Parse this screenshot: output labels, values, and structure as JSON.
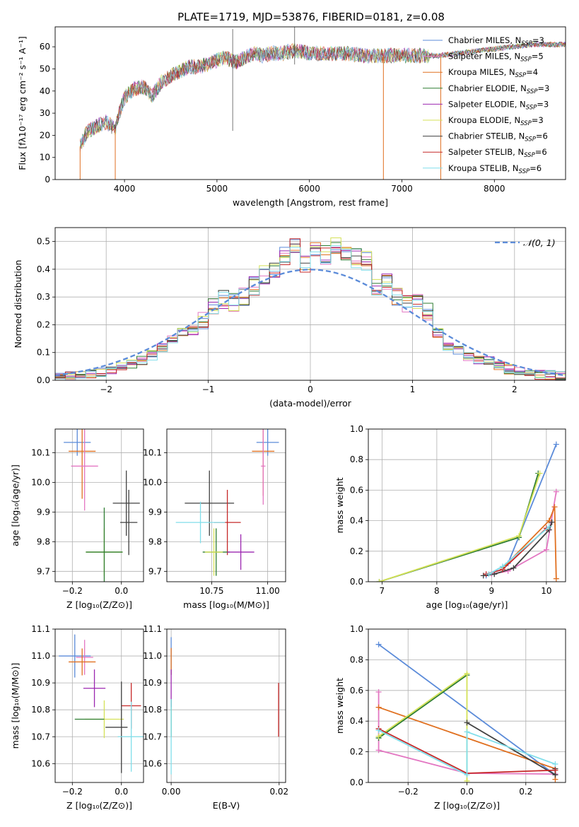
{
  "title": "PLATE=1719, MJD=53876, FIBERID=0181, z=0.08",
  "colors": {
    "chabrier_miles": "#5b8bd9",
    "salpeter_miles": "#e377c2",
    "kroupa_miles": "#e07020",
    "chabrier_elodie": "#2e7d32",
    "salpeter_elodie": "#9c27b0",
    "kroupa_elodie": "#d4e157",
    "chabrier_stelib": "#404040",
    "salpeter_stelib": "#c62828",
    "kroupa_stelib": "#80deea",
    "normal": "#5b8bd9"
  },
  "legend": [
    {
      "label": "Chabrier MILES, N",
      "sub": "SSP",
      "tail": "=3",
      "color": "#5b8bd9"
    },
    {
      "label": "Salpeter MILES, N",
      "sub": "SSP",
      "tail": "=5",
      "color": "#e377c2"
    },
    {
      "label": "Kroupa MILES, N",
      "sub": "SSP",
      "tail": "=4",
      "color": "#e07020"
    },
    {
      "label": "Chabrier ELODIE, N",
      "sub": "SSP",
      "tail": "=3",
      "color": "#2e7d32"
    },
    {
      "label": "Salpeter ELODIE, N",
      "sub": "SSP",
      "tail": "=3",
      "color": "#9c27b0"
    },
    {
      "label": "Kroupa ELODIE, N",
      "sub": "SSP",
      "tail": "=3",
      "color": "#d4e157"
    },
    {
      "label": "Chabrier STELIB, N",
      "sub": "SSP",
      "tail": "=6",
      "color": "#404040"
    },
    {
      "label": "Salpeter STELIB, N",
      "sub": "SSP",
      "tail": "=6",
      "color": "#c62828"
    },
    {
      "label": "Kroupa STELIB, N",
      "sub": "SSP",
      "tail": "=6",
      "color": "#80deea"
    }
  ],
  "chart_data": [
    {
      "type": "line",
      "id": "spectrum",
      "xlabel": "wavelength [Angstrom, rest frame]",
      "ylabel": "Flux [fλ10⁻¹⁷ erg cm⁻² s⁻¹ A⁻¹]",
      "xlim": [
        3250,
        8770
      ],
      "ylim": [
        0,
        69
      ],
      "xticks": [
        4000,
        5000,
        6000,
        7000,
        8000
      ],
      "yticks": [
        0,
        10,
        20,
        30,
        40,
        50,
        60
      ],
      "grid": false,
      "legend_position": "top-right",
      "envelope": {
        "x": [
          3520,
          3600,
          3700,
          3800,
          3900,
          3950,
          4000,
          4100,
          4200,
          4300,
          4400,
          4500,
          4600,
          4700,
          4800,
          4900,
          5000,
          5100,
          5200,
          5300,
          5400,
          5500,
          5600,
          5700,
          5800,
          5900,
          6000,
          6200,
          6400,
          6600,
          6800,
          7000,
          7200,
          7400,
          7600,
          7800,
          8000,
          8200,
          8400,
          8600,
          8770
        ],
        "y": [
          15,
          22,
          24,
          26,
          23,
          31,
          37,
          41,
          42,
          38,
          44,
          47,
          49,
          51,
          51,
          52,
          54,
          55,
          53,
          55,
          57,
          56,
          57,
          57,
          58,
          58,
          57,
          57,
          57,
          56,
          56,
          56,
          56,
          56,
          57,
          58,
          59,
          60,
          61,
          61,
          61
        ]
      },
      "noise_amplitude": 3.5
    },
    {
      "type": "bar",
      "id": "residual_hist",
      "xlabel": "(data-model)/error",
      "ylabel": "Normed distribution",
      "xlim": [
        -2.5,
        2.5
      ],
      "ylim": [
        0,
        0.55
      ],
      "xticks": [
        -2,
        -1,
        0,
        1,
        2
      ],
      "xtick_labels": [
        "−2",
        "−1",
        "0",
        "1",
        "2"
      ],
      "yticks": [
        0.0,
        0.1,
        0.2,
        0.3,
        0.4,
        0.5
      ],
      "grid": true,
      "bin_width": 0.1,
      "legend": "𝒩(0, 1)",
      "legend_position": "top-right",
      "bins": [
        -2.5,
        -2.4,
        -2.3,
        -2.2,
        -2.1,
        -2.0,
        -1.9,
        -1.8,
        -1.7,
        -1.6,
        -1.5,
        -1.4,
        -1.3,
        -1.2,
        -1.1,
        -1.0,
        -0.9,
        -0.8,
        -0.7,
        -0.6,
        -0.5,
        -0.4,
        -0.3,
        -0.2,
        -0.1,
        0.0,
        0.1,
        0.2,
        0.3,
        0.4,
        0.5,
        0.6,
        0.7,
        0.8,
        0.9,
        1.0,
        1.1,
        1.2,
        1.3,
        1.4,
        1.5,
        1.6,
        1.7,
        1.8,
        1.9,
        2.0,
        2.1,
        2.2,
        2.3,
        2.4
      ],
      "base_values": [
        0.01,
        0.015,
        0.02,
        0.025,
        0.03,
        0.04,
        0.05,
        0.06,
        0.07,
        0.09,
        0.12,
        0.15,
        0.17,
        0.18,
        0.22,
        0.27,
        0.29,
        0.28,
        0.3,
        0.34,
        0.38,
        0.4,
        0.45,
        0.48,
        0.42,
        0.47,
        0.45,
        0.48,
        0.45,
        0.44,
        0.43,
        0.33,
        0.36,
        0.3,
        0.27,
        0.29,
        0.25,
        0.17,
        0.12,
        0.11,
        0.08,
        0.07,
        0.07,
        0.05,
        0.04,
        0.03,
        0.02,
        0.02,
        0.02,
        0.02
      ],
      "normal_curve": {
        "mean": 0,
        "std": 1
      }
    },
    {
      "type": "scatter",
      "id": "age_vs_Z",
      "xlabel": "Z [log₁₀(Z/Z⊙)]",
      "ylabel": "age  [log₁₀(age/yr)]",
      "xlim": [
        -0.27,
        0.09
      ],
      "ylim": [
        9.665,
        10.18
      ],
      "xticks": [
        -0.2,
        0.0
      ],
      "xtick_labels": [
        "−0.2",
        "0.0"
      ],
      "yticks": [
        9.7,
        9.8,
        9.9,
        10.0,
        10.1
      ],
      "grid": true,
      "points": [
        {
          "x": -0.18,
          "y": 10.135,
          "xerr": 0.055,
          "yerr": 0.045,
          "color": "#5b8bd9"
        },
        {
          "x": -0.16,
          "y": 10.105,
          "xerr": 0.055,
          "yerr": 0.16,
          "color": "#e07020"
        },
        {
          "x": -0.15,
          "y": 10.055,
          "xerr": 0.055,
          "yerr": 0.15,
          "color": "#e377c2"
        },
        {
          "x": 0.02,
          "y": 9.93,
          "xerr": 0.055,
          "yerr": 0.11,
          "color": "#404040"
        },
        {
          "x": 0.03,
          "y": 9.865,
          "xerr": 0.035,
          "yerr": 0.11,
          "color": "#404040"
        },
        {
          "x": -0.07,
          "y": 9.765,
          "xerr": 0.075,
          "yerr": 0.08,
          "color": "#d4e157"
        },
        {
          "x": -0.07,
          "y": 9.765,
          "xerr": 0.075,
          "yerr": 0.15,
          "color": "#2e7d32"
        }
      ]
    },
    {
      "type": "scatter",
      "id": "age_vs_mass",
      "xlabel": "mass [log₁₀(M/M⊙)]",
      "ylabel": "",
      "xlim": [
        10.55,
        11.08
      ],
      "ylim": [
        9.665,
        10.18
      ],
      "xticks": [
        10.75,
        11.0
      ],
      "xtick_labels": [
        "10.75",
        "11.00"
      ],
      "yticks": [
        9.7,
        9.8,
        9.9,
        10.0,
        10.1
      ],
      "grid": true,
      "points": [
        {
          "x": 11.0,
          "y": 10.135,
          "xerr": 0.05,
          "yerr": 0.045,
          "color": "#5b8bd9"
        },
        {
          "x": 10.98,
          "y": 10.105,
          "xerr": 0.05,
          "yerr": 0.15,
          "color": "#e07020"
        },
        {
          "x": 10.98,
          "y": 10.055,
          "xerr": 0.01,
          "yerr": 0.13,
          "color": "#e377c2"
        },
        {
          "x": 10.74,
          "y": 9.93,
          "xerr": 0.11,
          "yerr": 0.11,
          "color": "#404040"
        },
        {
          "x": 10.82,
          "y": 9.865,
          "xerr": 0.06,
          "yerr": 0.11,
          "color": "#c62828"
        },
        {
          "x": 10.7,
          "y": 9.865,
          "xerr": 0.11,
          "yerr": 0.07,
          "color": "#80deea"
        },
        {
          "x": 10.77,
          "y": 9.765,
          "xerr": 0.06,
          "yerr": 0.08,
          "color": "#2e7d32"
        },
        {
          "x": 10.88,
          "y": 9.765,
          "xerr": 0.06,
          "yerr": 0.06,
          "color": "#9c27b0"
        },
        {
          "x": 10.76,
          "y": 9.765,
          "xerr": 0.04,
          "yerr": 0.08,
          "color": "#d4e157"
        }
      ]
    },
    {
      "type": "line",
      "id": "massweight_vs_age",
      "xlabel": "age  [log₁₀(age/yr)]",
      "ylabel": "mass weight",
      "xlim": [
        6.75,
        10.35
      ],
      "ylim": [
        0,
        1.0
      ],
      "xticks": [
        7,
        8,
        9,
        10
      ],
      "yticks": [
        0.0,
        0.2,
        0.4,
        0.6,
        0.8,
        1.0
      ],
      "grid": true,
      "series": [
        {
          "color": "#5b8bd9",
          "x": [
            8.9,
            9.3,
            10.18
          ],
          "y": [
            0.04,
            0.12,
            0.9
          ]
        },
        {
          "color": "#e377c2",
          "x": [
            9.0,
            9.3,
            10.0,
            10.18
          ],
          "y": [
            0.05,
            0.07,
            0.21,
            0.59
          ]
        },
        {
          "color": "#e07020",
          "x": [
            9.2,
            10.05,
            10.15,
            10.18
          ],
          "y": [
            0.09,
            0.4,
            0.49,
            0.02
          ]
        },
        {
          "color": "#2e7d32",
          "x": [
            6.95,
            9.5,
            9.85
          ],
          "y": [
            0.0,
            0.29,
            0.71
          ]
        },
        {
          "color": "#d4e157",
          "x": [
            6.95,
            9.5,
            9.88
          ],
          "y": [
            0.0,
            0.3,
            0.71
          ]
        },
        {
          "color": "#404040",
          "x": [
            8.85,
            9.05,
            9.4,
            10.05,
            10.1
          ],
          "y": [
            0.04,
            0.05,
            0.09,
            0.34,
            0.39
          ]
        },
        {
          "color": "#c62828",
          "x": [
            8.9,
            9.2,
            10.0
          ],
          "y": [
            0.05,
            0.08,
            0.35
          ]
        },
        {
          "color": "#80deea",
          "x": [
            8.95,
            9.2,
            10.05
          ],
          "y": [
            0.05,
            0.1,
            0.36
          ]
        }
      ]
    },
    {
      "type": "scatter",
      "id": "mass_vs_Z",
      "xlabel": "Z [log₁₀(Z/Z⊙)]",
      "ylabel": "mass [log₁₀(M/M⊙)]",
      "xlim": [
        -0.27,
        0.09
      ],
      "ylim": [
        10.53,
        11.1
      ],
      "xticks": [
        -0.2,
        0.0
      ],
      "xtick_labels": [
        "−0.2",
        "0.0"
      ],
      "yticks": [
        10.6,
        10.7,
        10.8,
        10.9,
        11.0,
        11.1
      ],
      "grid": true,
      "points": [
        {
          "x": -0.19,
          "y": 11.0,
          "xerr": 0.065,
          "yerr": 0.08,
          "color": "#5b8bd9"
        },
        {
          "x": -0.15,
          "y": 10.995,
          "xerr": 0.035,
          "yerr": 0.065,
          "color": "#e377c2"
        },
        {
          "x": -0.16,
          "y": 10.978,
          "xerr": 0.055,
          "yerr": 0.05,
          "color": "#e07020"
        },
        {
          "x": -0.11,
          "y": 10.88,
          "xerr": 0.045,
          "yerr": 0.07,
          "color": "#9c27b0"
        },
        {
          "x": -0.07,
          "y": 10.765,
          "xerr": 0.08,
          "yerr": 0.07,
          "color": "#d4e157"
        },
        {
          "x": -0.13,
          "y": 10.765,
          "xerr": 0.06,
          "yerr": 0.0,
          "color": "#2e7d32"
        },
        {
          "x": 0.04,
          "y": 10.815,
          "xerr": 0.04,
          "yerr": 0.085,
          "color": "#c62828"
        },
        {
          "x": -0.02,
          "y": 10.735,
          "xerr": 0.045,
          "yerr": 0.0,
          "color": "#404040"
        },
        {
          "x": 0.0,
          "y": 10.735,
          "xerr": 0.0,
          "yerr": 0.17,
          "color": "#404040"
        },
        {
          "x": 0.04,
          "y": 10.7,
          "xerr": 0.055,
          "yerr": 0.13,
          "color": "#80deea"
        }
      ]
    },
    {
      "type": "scatter",
      "id": "mass_vs_ebv",
      "xlabel": "E(B-V)",
      "ylabel": "",
      "xlim": [
        -0.0008,
        0.0212
      ],
      "ylim": [
        10.53,
        11.1
      ],
      "xticks": [
        0.0,
        0.02
      ],
      "xtick_labels": [
        "0.00",
        "0.02"
      ],
      "yticks": [
        10.6,
        10.7,
        10.8,
        10.9,
        11.0,
        11.1
      ],
      "grid": true,
      "points": [
        {
          "x": 0.0,
          "y": 11.0,
          "xerr": 0,
          "yerr": 0.07,
          "color": "#5b8bd9"
        },
        {
          "x": 0.0,
          "y": 10.98,
          "xerr": 0,
          "yerr": 0.05,
          "color": "#e07020"
        },
        {
          "x": 0.0,
          "y": 10.88,
          "xerr": 0,
          "yerr": 0.07,
          "color": "#9c27b0"
        },
        {
          "x": 0.0,
          "y": 10.77,
          "xerr": 0,
          "yerr": 0.07,
          "color": "#2e7d32"
        },
        {
          "x": 0.0,
          "y": 10.7,
          "xerr": 0,
          "yerr": 0.14,
          "color": "#80deea"
        },
        {
          "x": 0.0199,
          "y": 10.8,
          "xerr": 0,
          "yerr": 0.1,
          "color": "#c62828"
        }
      ]
    },
    {
      "type": "line",
      "id": "massweight_vs_Z",
      "xlabel": "Z [log₁₀(Z/Z⊙)]",
      "ylabel": "mass weight",
      "xlim": [
        -0.335,
        0.335
      ],
      "ylim": [
        0,
        1.0
      ],
      "xticks": [
        -0.2,
        0.0,
        0.2
      ],
      "xtick_labels": [
        "−0.2",
        "0.0",
        "0.2"
      ],
      "yticks": [
        0.0,
        0.2,
        0.4,
        0.6,
        0.8,
        1.0
      ],
      "grid": true,
      "series": [
        {
          "color": "#5b8bd9",
          "x": [
            -0.3,
            0.3
          ],
          "y": [
            0.9,
            0.05
          ]
        },
        {
          "color": "#e377c2",
          "x": [
            -0.3,
            -0.3,
            0.0,
            0.3
          ],
          "y": [
            0.59,
            0.21,
            0.06,
            0.055
          ]
        },
        {
          "color": "#e07020",
          "x": [
            -0.3,
            0.3,
            0.3
          ],
          "y": [
            0.49,
            0.09,
            0.02
          ]
        },
        {
          "color": "#2e7d32",
          "x": [
            -0.3,
            0.0
          ],
          "y": [
            0.29,
            0.7
          ]
        },
        {
          "color": "#d4e157",
          "x": [
            -0.3,
            0.0,
            0.0
          ],
          "y": [
            0.3,
            0.71,
            0.01
          ]
        },
        {
          "color": "#404040",
          "x": [
            0.0,
            0.3,
            0.3
          ],
          "y": [
            0.39,
            0.05,
            0.09
          ]
        },
        {
          "color": "#c62828",
          "x": [
            -0.3,
            0.0,
            0.3
          ],
          "y": [
            0.35,
            0.06,
            0.08
          ]
        },
        {
          "color": "#80deea",
          "x": [
            -0.3,
            0.0,
            0.0,
            0.3
          ],
          "y": [
            0.34,
            0.05,
            0.33,
            0.12
          ]
        }
      ]
    }
  ]
}
